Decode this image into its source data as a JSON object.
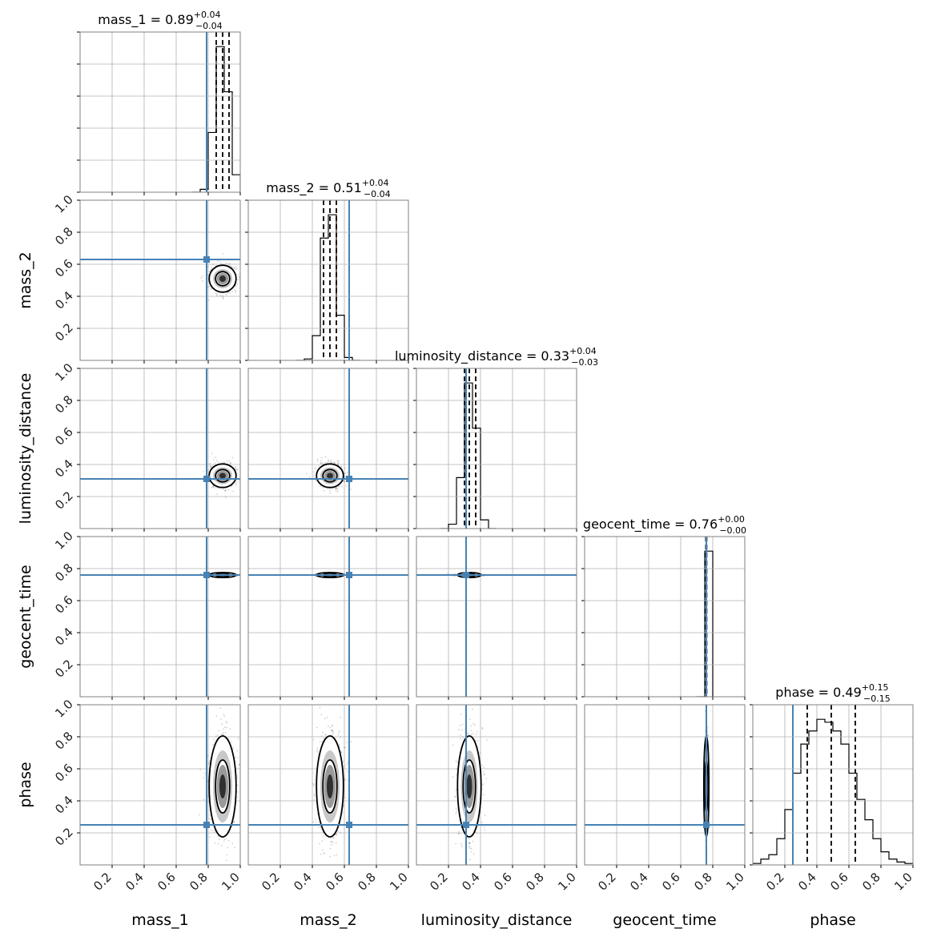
{
  "chart_data": {
    "type": "corner",
    "parameters": [
      "mass_1",
      "mass_2",
      "luminosity_distance",
      "geocent_time",
      "phase"
    ],
    "ranges": [
      [
        0,
        1
      ],
      [
        0,
        1
      ],
      [
        0,
        1
      ],
      [
        0,
        1
      ],
      [
        0,
        1
      ]
    ],
    "ticks": [
      0.2,
      0.4,
      0.6,
      0.8,
      1.0
    ],
    "tick_labels": [
      "0.2",
      "0.4",
      "0.6",
      "0.8",
      "1.0"
    ],
    "truths": [
      0.79,
      0.63,
      0.31,
      0.76,
      0.25
    ],
    "truth_color": "#4682b4",
    "grid": true,
    "titles": [
      {
        "param": "mass_1",
        "median": "0.89",
        "plus": "+0.04",
        "minus": "−0.04"
      },
      {
        "param": "mass_2",
        "median": "0.51",
        "plus": "+0.04",
        "minus": "−0.04"
      },
      {
        "param": "luminosity_distance",
        "median": "0.33",
        "plus": "+0.04",
        "minus": "−0.03"
      },
      {
        "param": "geocent_time",
        "median": "0.76",
        "plus": "+0.00",
        "minus": "−0.00"
      },
      {
        "param": "phase",
        "median": "0.49",
        "plus": "+0.15",
        "minus": "−0.15"
      }
    ],
    "quantiles": [
      [
        0.85,
        0.89,
        0.93
      ],
      [
        0.47,
        0.51,
        0.55
      ],
      [
        0.3,
        0.33,
        0.37
      ],
      [
        0.757,
        0.76,
        0.762
      ],
      [
        0.34,
        0.49,
        0.64
      ]
    ],
    "histograms": [
      {
        "bins": [
          0.7,
          0.75,
          0.8,
          0.85,
          0.9,
          0.95,
          1.0
        ],
        "counts": [
          0.0,
          0.02,
          0.41,
          1.0,
          0.69,
          0.12
        ]
      },
      {
        "bins": [
          0.3,
          0.35,
          0.4,
          0.45,
          0.5,
          0.55,
          0.6,
          0.65,
          0.7
        ],
        "counts": [
          0.0,
          0.01,
          0.17,
          0.84,
          1.0,
          0.31,
          0.02,
          0.0
        ]
      },
      {
        "bins": [
          0.15,
          0.2,
          0.25,
          0.3,
          0.35,
          0.4,
          0.45,
          0.5
        ],
        "counts": [
          0.0,
          0.03,
          0.35,
          1.0,
          0.69,
          0.06,
          0.0
        ]
      },
      {
        "bins": [
          0.7,
          0.75,
          0.8
        ],
        "counts": [
          0.0,
          1.0
        ]
      },
      {
        "bins": [
          0.0,
          0.05,
          0.1,
          0.15,
          0.2,
          0.25,
          0.3,
          0.35,
          0.4,
          0.45,
          0.5,
          0.55,
          0.6,
          0.65,
          0.7,
          0.75,
          0.8,
          0.85,
          0.9,
          0.95,
          1.0
        ],
        "counts": [
          0.01,
          0.04,
          0.07,
          0.18,
          0.38,
          0.63,
          0.83,
          0.92,
          1.0,
          0.98,
          0.92,
          0.83,
          0.63,
          0.45,
          0.31,
          0.18,
          0.09,
          0.04,
          0.02,
          0.01
        ]
      }
    ],
    "posterior_2d": {
      "means": [
        0.89,
        0.51,
        0.33,
        0.76,
        0.49
      ],
      "sigmas": [
        0.04,
        0.04,
        0.035,
        0.004,
        0.15
      ]
    }
  }
}
